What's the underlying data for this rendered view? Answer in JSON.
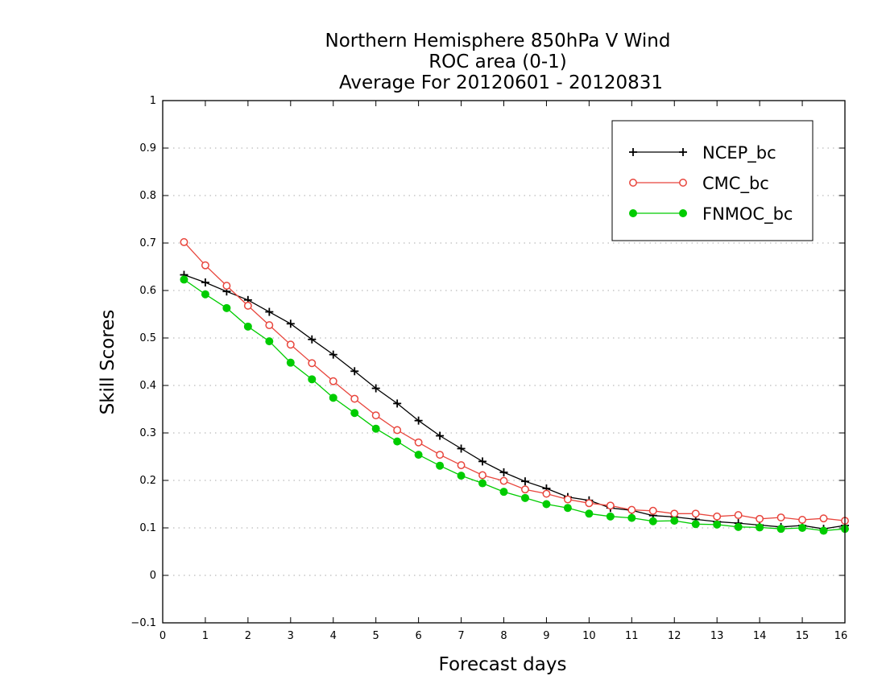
{
  "chart_data": {
    "type": "line",
    "title_lines": [
      "Northern Hemisphere 850hPa V Wind",
      "ROC area (0-1)",
      "Average For 20120601 - 20120831"
    ],
    "xlabel": "Forecast days",
    "ylabel": "Skill Scores",
    "xlim": [
      0,
      16
    ],
    "ylim": [
      -0.1,
      1
    ],
    "x_ticks": [
      0,
      1,
      2,
      3,
      4,
      5,
      6,
      7,
      8,
      9,
      10,
      11,
      12,
      13,
      14,
      15,
      16
    ],
    "x_tick_labels": [
      "0",
      "1",
      "2",
      "3",
      "4",
      "5",
      "6",
      "7",
      "8",
      "9",
      "10",
      "11",
      "12",
      "13",
      "14",
      "15",
      "16"
    ],
    "y_ticks": [
      -0.1,
      0,
      0.1,
      0.2,
      0.3,
      0.4,
      0.5,
      0.6,
      0.7,
      0.8,
      0.9,
      1
    ],
    "y_tick_labels": [
      "−0.1",
      "0",
      "0.1",
      "0.2",
      "0.3",
      "0.4",
      "0.5",
      "0.6",
      "0.7",
      "0.8",
      "0.9",
      "1"
    ],
    "grid": "horizontal dotted",
    "legend_position": "top-right",
    "x": [
      0.5,
      1,
      1.5,
      2,
      2.5,
      3,
      3.5,
      4,
      4.5,
      5,
      5.5,
      6,
      6.5,
      7,
      7.5,
      8,
      8.5,
      9,
      9.5,
      10,
      10.5,
      11,
      11.5,
      12,
      12.5,
      13,
      13.5,
      14,
      14.5,
      15,
      15.5,
      16
    ],
    "series": [
      {
        "name": "NCEP_bc",
        "color": "#000000",
        "marker": "plus",
        "values": [
          0.633,
          0.617,
          0.598,
          0.58,
          0.555,
          0.53,
          0.497,
          0.465,
          0.43,
          0.394,
          0.362,
          0.326,
          0.294,
          0.267,
          0.24,
          0.217,
          0.198,
          0.183,
          0.165,
          0.158,
          0.142,
          0.137,
          0.126,
          0.123,
          0.118,
          0.113,
          0.11,
          0.106,
          0.102,
          0.105,
          0.098,
          0.105
        ]
      },
      {
        "name": "CMC_bc",
        "color": "#e8453c",
        "marker": "open-circle",
        "values": [
          0.702,
          0.653,
          0.61,
          0.568,
          0.527,
          0.486,
          0.447,
          0.409,
          0.372,
          0.337,
          0.306,
          0.28,
          0.254,
          0.232,
          0.211,
          0.199,
          0.181,
          0.172,
          0.16,
          0.152,
          0.147,
          0.138,
          0.136,
          0.13,
          0.13,
          0.124,
          0.127,
          0.119,
          0.122,
          0.117,
          0.12,
          0.115
        ]
      },
      {
        "name": "FNMOC_bc",
        "color": "#00cc00",
        "marker": "filled-circle",
        "values": [
          0.623,
          0.592,
          0.563,
          0.524,
          0.493,
          0.448,
          0.413,
          0.374,
          0.342,
          0.309,
          0.282,
          0.254,
          0.231,
          0.21,
          0.194,
          0.176,
          0.163,
          0.15,
          0.142,
          0.13,
          0.124,
          0.121,
          0.114,
          0.115,
          0.108,
          0.107,
          0.102,
          0.101,
          0.098,
          0.1,
          0.094,
          0.098
        ]
      }
    ]
  }
}
